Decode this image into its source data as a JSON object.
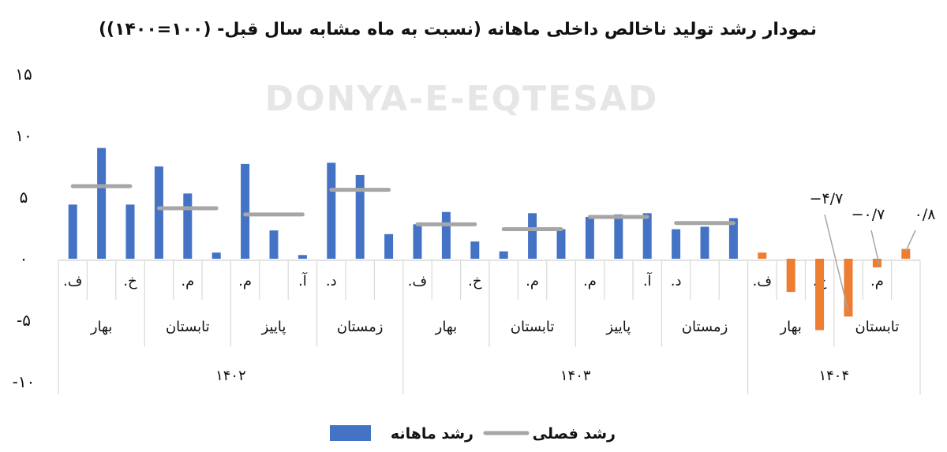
{
  "chart_data": {
    "type": "bar",
    "title": "نمودار رشد تولید ناخالص داخلی ماهانه (نسبت به ماه مشابه سال قبل- (۱۰۰=۱۴۰۰))",
    "ylim": [
      -10,
      15
    ],
    "yticks": [
      15,
      10,
      5,
      0,
      -5,
      -10
    ],
    "ytick_labels": [
      "۱۵",
      "۱۰",
      "۵",
      "۰",
      "-۵",
      "-۱۰"
    ],
    "grid": false,
    "legend_position": "bottom",
    "years": [
      {
        "label": "۱۴۰۲",
        "seasons": [
          "بهار",
          "تابستان",
          "پاییز",
          "زمستان"
        ]
      },
      {
        "label": "۱۴۰۳",
        "seasons": [
          "بهار",
          "تابستان",
          "پاییز",
          "زمستان"
        ]
      },
      {
        "label": "۱۴۰۴",
        "seasons": [
          "بهار",
          "تابستان"
        ]
      }
    ],
    "month_labels": [
      ".ف",
      "",
      ".خ",
      "",
      ".م",
      "",
      ".م",
      "",
      ".آ",
      ".د",
      "",
      "",
      ".ف",
      "",
      ".خ",
      "",
      ".م",
      "",
      ".م",
      "",
      ".آ",
      ".د",
      "",
      "",
      ".ف",
      "",
      ".خ",
      "",
      ".م",
      ""
    ],
    "series": [
      {
        "name": "رشد ماهانه",
        "color": "#4472c4",
        "highlight_color": "#ed7d31",
        "values": [
          4.4,
          9.0,
          4.4,
          7.5,
          5.3,
          0.5,
          7.7,
          2.3,
          0.3,
          7.8,
          6.8,
          2.0,
          2.8,
          3.8,
          1.4,
          0.6,
          3.7,
          2.4,
          3.4,
          3.6,
          3.7,
          2.4,
          2.6,
          3.3,
          0.5,
          -2.7,
          -5.8,
          -4.7,
          -0.7,
          0.8
        ],
        "highlighted_from_index": 24
      },
      {
        "name": "رشد فصلی",
        "color": "#a6a6a6",
        "type": "season-line",
        "values": [
          5.9,
          4.1,
          3.6,
          5.6,
          2.8,
          2.4,
          3.4,
          2.9
        ]
      }
    ],
    "annotations": [
      {
        "text": "−۴/۷",
        "month_index": 27
      },
      {
        "text": "−۰/۷",
        "month_index": 28
      },
      {
        "text": "۰/۸",
        "month_index": 29
      }
    ]
  },
  "watermark": "DONYA-E-EQTESAD"
}
